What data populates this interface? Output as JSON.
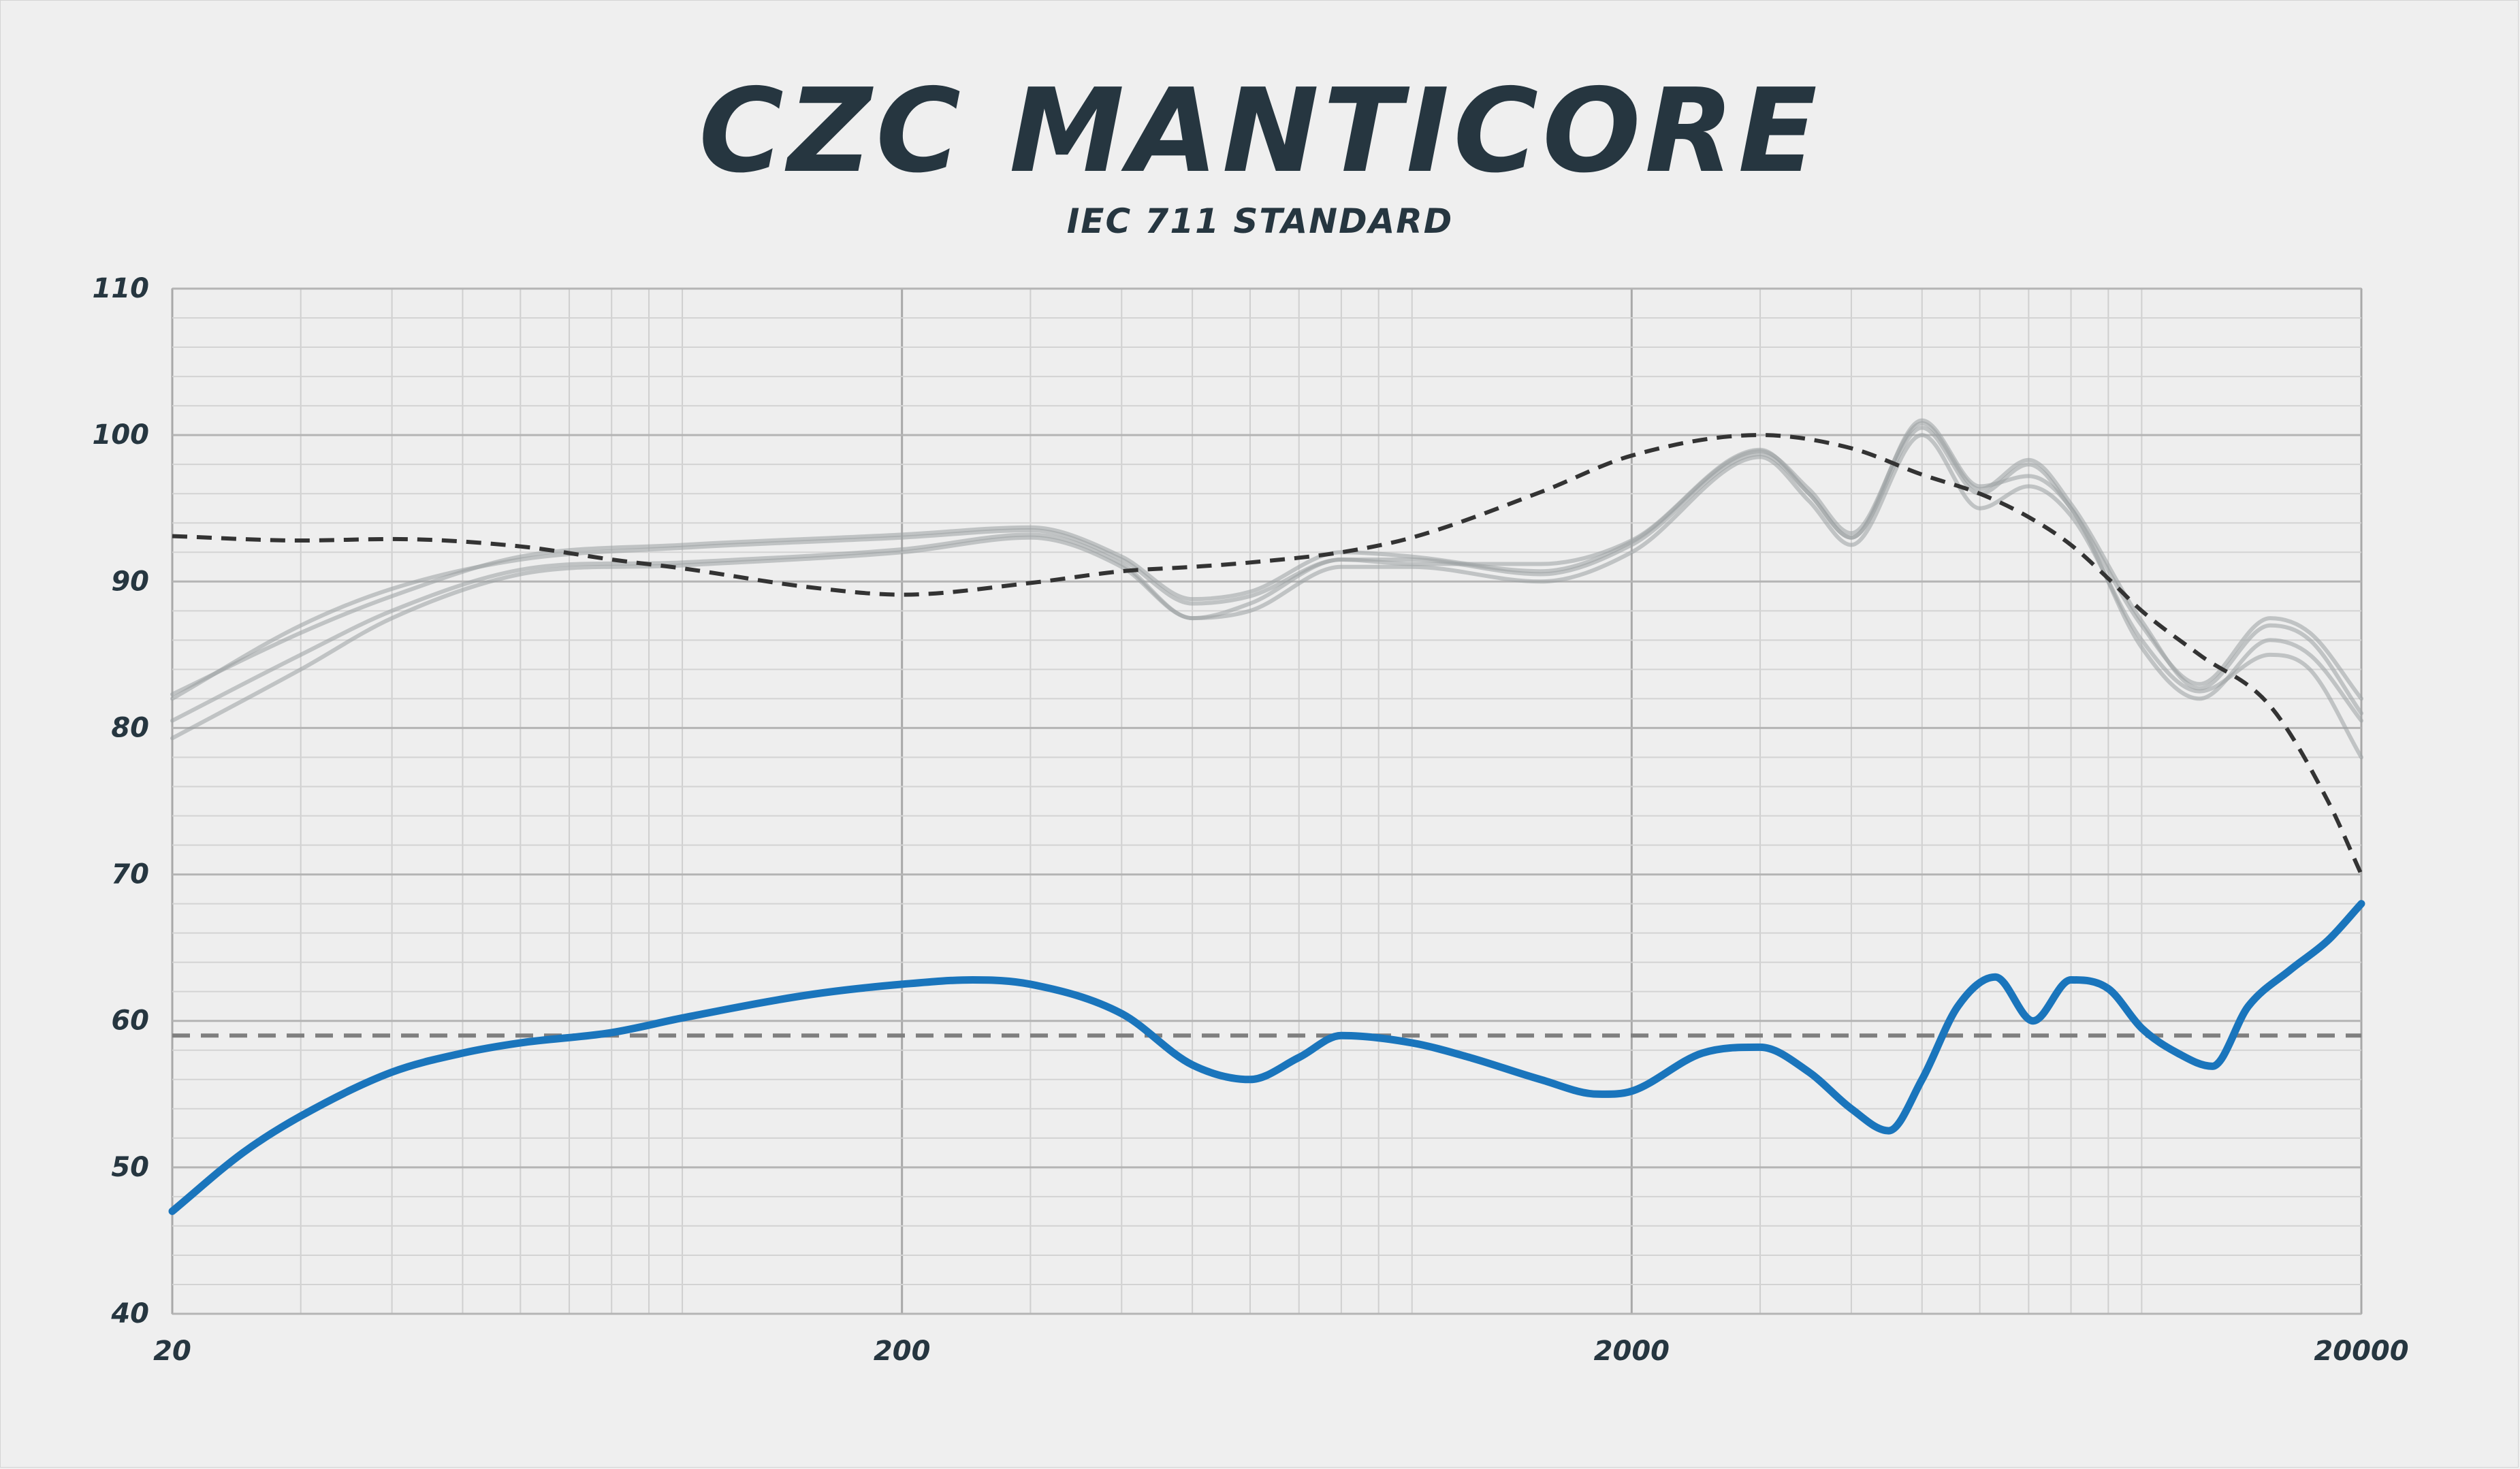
{
  "colors": {
    "background": "#efefef",
    "title": "#263640",
    "target": "#333333",
    "average_line": "#7f7f7f",
    "measurements": "#9aa0a3",
    "difference": "#1a75bc"
  },
  "chart_data": {
    "type": "line",
    "title": "CZC MANTICORE",
    "subtitle": "IEC 711 STANDARD",
    "xlabel": "",
    "ylabel": "",
    "xscale": "log",
    "xlim": [
      20,
      20000
    ],
    "ylim": [
      40,
      110
    ],
    "grid": true,
    "x_ticks": [
      20,
      200,
      2000,
      20000
    ],
    "y_ticks": [
      40,
      50,
      60,
      70,
      80,
      90,
      100,
      110
    ],
    "x_tick_labels": [
      "20",
      "200",
      "2000",
      "20000"
    ],
    "y_tick_labels": [
      "40",
      "50",
      "60",
      "70",
      "80",
      "90",
      "100",
      "110"
    ],
    "series": [
      {
        "style": "dashed-dark",
        "x": [
          20,
          30,
          40,
          60,
          80,
          100,
          150,
          200,
          300,
          400,
          500,
          600,
          800,
          1000,
          1500,
          2000,
          3000,
          4000,
          5000,
          6000,
          7000,
          8000,
          9000,
          10000,
          12000,
          15000,
          18000,
          20000
        ],
        "y": [
          93.1,
          92.8,
          92.9,
          92.4,
          91.5,
          90.9,
          89.6,
          89.1,
          89.9,
          90.7,
          91.0,
          91.3,
          92.0,
          93.0,
          96.1,
          98.6,
          100.0,
          99.1,
          97.3,
          96.0,
          94.4,
          92.5,
          90.2,
          88.0,
          85.0,
          81.5,
          75.0,
          70.0
        ]
      },
      {
        "style": "measurement",
        "x": [
          20,
          30,
          40,
          60,
          100,
          200,
          300,
          400,
          500,
          600,
          800,
          1000,
          1500,
          2000,
          3000,
          3500,
          4000,
          5000,
          6000,
          7000,
          8000,
          10000,
          12000,
          15000,
          17000,
          20000
        ],
        "y": [
          82,
          87,
          89.5,
          91.5,
          92.3,
          93.0,
          93.5,
          91.5,
          88.5,
          89,
          91.5,
          91.5,
          90.5,
          92.5,
          98.7,
          96,
          93,
          100.5,
          96,
          98,
          95,
          87,
          83,
          87.5,
          86.5,
          82
        ]
      },
      {
        "style": "measurement",
        "x": [
          20,
          30,
          40,
          60,
          100,
          200,
          300,
          400,
          500,
          600,
          800,
          1000,
          1500,
          2000,
          3000,
          3500,
          4000,
          5000,
          6000,
          7000,
          8000,
          10000,
          12000,
          15000,
          17000,
          20000
        ],
        "y": [
          80.5,
          85,
          88,
          90.8,
          91.3,
          92.2,
          93.2,
          91.2,
          87.5,
          88.5,
          91.5,
          91.2,
          91.2,
          92.8,
          99.0,
          96,
          93,
          101,
          96.5,
          97.2,
          95,
          85.5,
          82,
          86,
          85,
          80.5
        ]
      },
      {
        "style": "measurement",
        "x": [
          20,
          30,
          40,
          60,
          100,
          200,
          300,
          400,
          500,
          600,
          800,
          1000,
          1500,
          2000,
          3000,
          3500,
          4000,
          5000,
          6000,
          7000,
          8000,
          10000,
          12000,
          15000,
          17000,
          20000
        ],
        "y": [
          79.3,
          84,
          87.5,
          90.5,
          91.1,
          92.0,
          93.0,
          91,
          87.5,
          88,
          91,
          91,
          90,
          92,
          98.5,
          95.5,
          92.5,
          100,
          95,
          96.5,
          94.5,
          86,
          82.5,
          85,
          84,
          78
        ]
      },
      {
        "style": "measurement",
        "x": [
          20,
          30,
          40,
          60,
          100,
          200,
          300,
          400,
          500,
          600,
          800,
          1000,
          1500,
          2000,
          3000,
          3500,
          4000,
          5000,
          6000,
          7000,
          8000,
          10000,
          12000,
          15000,
          17000,
          20000
        ],
        "y": [
          82.3,
          86.5,
          89,
          91.7,
          92.5,
          93.2,
          93.7,
          91.7,
          88.8,
          89.3,
          92,
          91.7,
          90.7,
          92.7,
          98.9,
          96.3,
          93.3,
          100.8,
          96.3,
          98.3,
          95.3,
          87.3,
          82.7,
          87.0,
          86.0,
          81
        ]
      },
      {
        "style": "average-dashed",
        "x": [
          20,
          20000
        ],
        "y": [
          59,
          59
        ]
      },
      {
        "style": "difference",
        "x": [
          20,
          25,
          30,
          40,
          50,
          60,
          80,
          100,
          150,
          200,
          250,
          300,
          400,
          500,
          600,
          700,
          800,
          1000,
          1200,
          1500,
          1800,
          2000,
          2500,
          3000,
          3500,
          4000,
          4500,
          5000,
          5600,
          6300,
          7100,
          8000,
          9000,
          10000,
          11200,
          12500,
          14000,
          16000,
          18000,
          20000
        ],
        "y": [
          47,
          51,
          53.5,
          56.5,
          57.8,
          58.5,
          59.2,
          60.2,
          61.8,
          62.5,
          62.8,
          62.5,
          60.5,
          57,
          56,
          57.5,
          59,
          58.5,
          57.5,
          56,
          55,
          55.2,
          57.8,
          58.2,
          56.5,
          54,
          52.5,
          56,
          61,
          63,
          60,
          62.8,
          62.2,
          59.5,
          57.8,
          56.9,
          61,
          63.5,
          65.5,
          68
        ]
      }
    ]
  }
}
